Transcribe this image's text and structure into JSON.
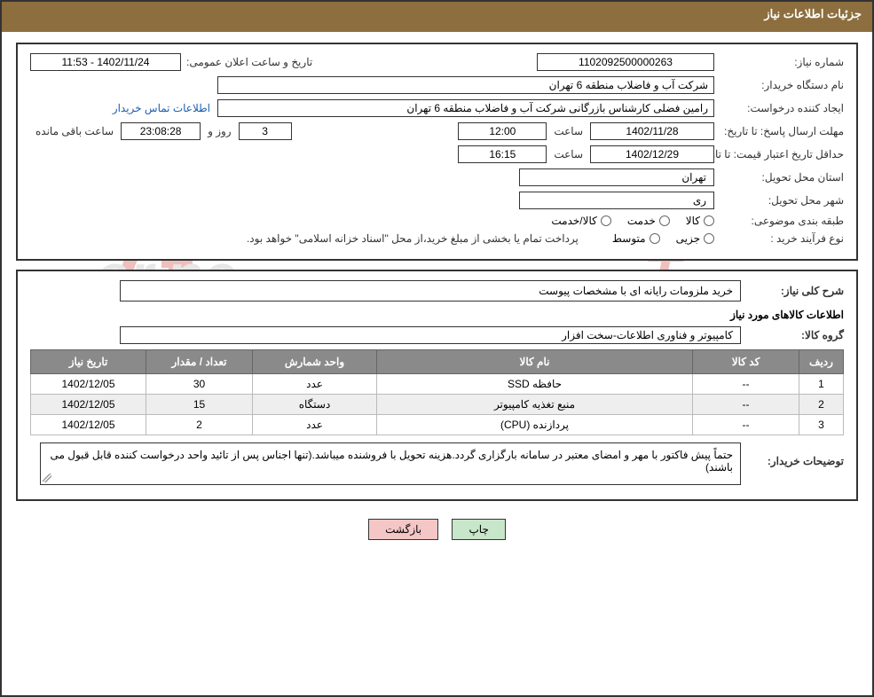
{
  "header": {
    "title": "جزئیات اطلاعات نیاز"
  },
  "info": {
    "need_number_label": "شماره نیاز:",
    "need_number": "1102092500000263",
    "announce_label": "تاریخ و ساعت اعلان عمومی:",
    "announce_value": "1402/11/24 - 11:53",
    "buyer_org_label": "نام دستگاه خریدار:",
    "buyer_org": "شرکت آب و فاضلاب منطقه 6 تهران",
    "requester_label": "ایجاد کننده درخواست:",
    "requester": "رامین  فضلی کارشناس بازرگانی شرکت آب و فاضلاب منطقه 6 تهران",
    "buyer_contact_link": "اطلاعات تماس خریدار",
    "reply_deadline_label": "مهلت ارسال پاسخ:",
    "to_date_label": "تا تاریخ:",
    "reply_date": "1402/11/28",
    "hour_label": "ساعت",
    "reply_time": "12:00",
    "days_value": "3",
    "and_label": "روز و",
    "countdown": "23:08:28",
    "remain_label": "ساعت باقی مانده",
    "price_validity_label": "حداقل تاریخ اعتبار قیمت:",
    "price_date": "1402/12/29",
    "price_time": "16:15",
    "province_label": "استان محل تحویل:",
    "province": "تهران",
    "city_label": "شهر محل تحویل:",
    "city": "ری",
    "category_label": "طبقه بندی موضوعی:",
    "cat_goods": "کالا",
    "cat_service": "خدمت",
    "cat_goods_service": "کالا/خدمت",
    "process_label": "نوع فرآیند خرید :",
    "proc_partial": "جزیی",
    "proc_medium": "متوسط",
    "process_note": "پرداخت تمام یا بخشی از مبلغ خرید،از محل \"اسناد خزانه اسلامی\" خواهد بود."
  },
  "need": {
    "general_label": "شرح کلی نیاز:",
    "general_text": "خرید ملزومات رایانه ای با مشخصات پیوست",
    "goods_info_title": "اطلاعات کالاهای مورد نیاز",
    "group_label": "گروه کالا:",
    "group_value": "کامپیوتر و فناوری اطلاعات-سخت افزار",
    "table": {
      "headers": [
        "ردیف",
        "کد کالا",
        "نام کالا",
        "واحد شمارش",
        "تعداد / مقدار",
        "تاریخ نیاز"
      ],
      "rows": [
        [
          "1",
          "--",
          "حافظه SSD",
          "عدد",
          "30",
          "1402/12/05"
        ],
        [
          "2",
          "--",
          "منبع تغذیه کامپیوتر",
          "دستگاه",
          "15",
          "1402/12/05"
        ],
        [
          "3",
          "--",
          "پردازنده (CPU)",
          "عدد",
          "2",
          "1402/12/05"
        ]
      ]
    },
    "buyer_desc_label": "توضیحات خریدار:",
    "buyer_desc": "حتماً پیش فاکتور با مهر و امضای معتبر در سامانه بارگزاری گردد.هزینه تحویل با فروشنده میباشد.(تنها اجناس پس از تائید واحد درخواست کننده قابل قبول می باشند)"
  },
  "buttons": {
    "print": "چاپ",
    "back": "بازگشت"
  },
  "style": {
    "header_bg": "#8d6e3e",
    "header_fg": "#ffffff",
    "border": "#333333",
    "th_bg": "#8a8a8a",
    "row_alt_bg": "#eeeeee",
    "link_color": "#1b5fb3",
    "btn_print_bg": "#c8e6c9",
    "btn_back_bg": "#f5c6c6",
    "watermark_red": "#d34b42",
    "watermark_gray": "#bdbdbd"
  }
}
